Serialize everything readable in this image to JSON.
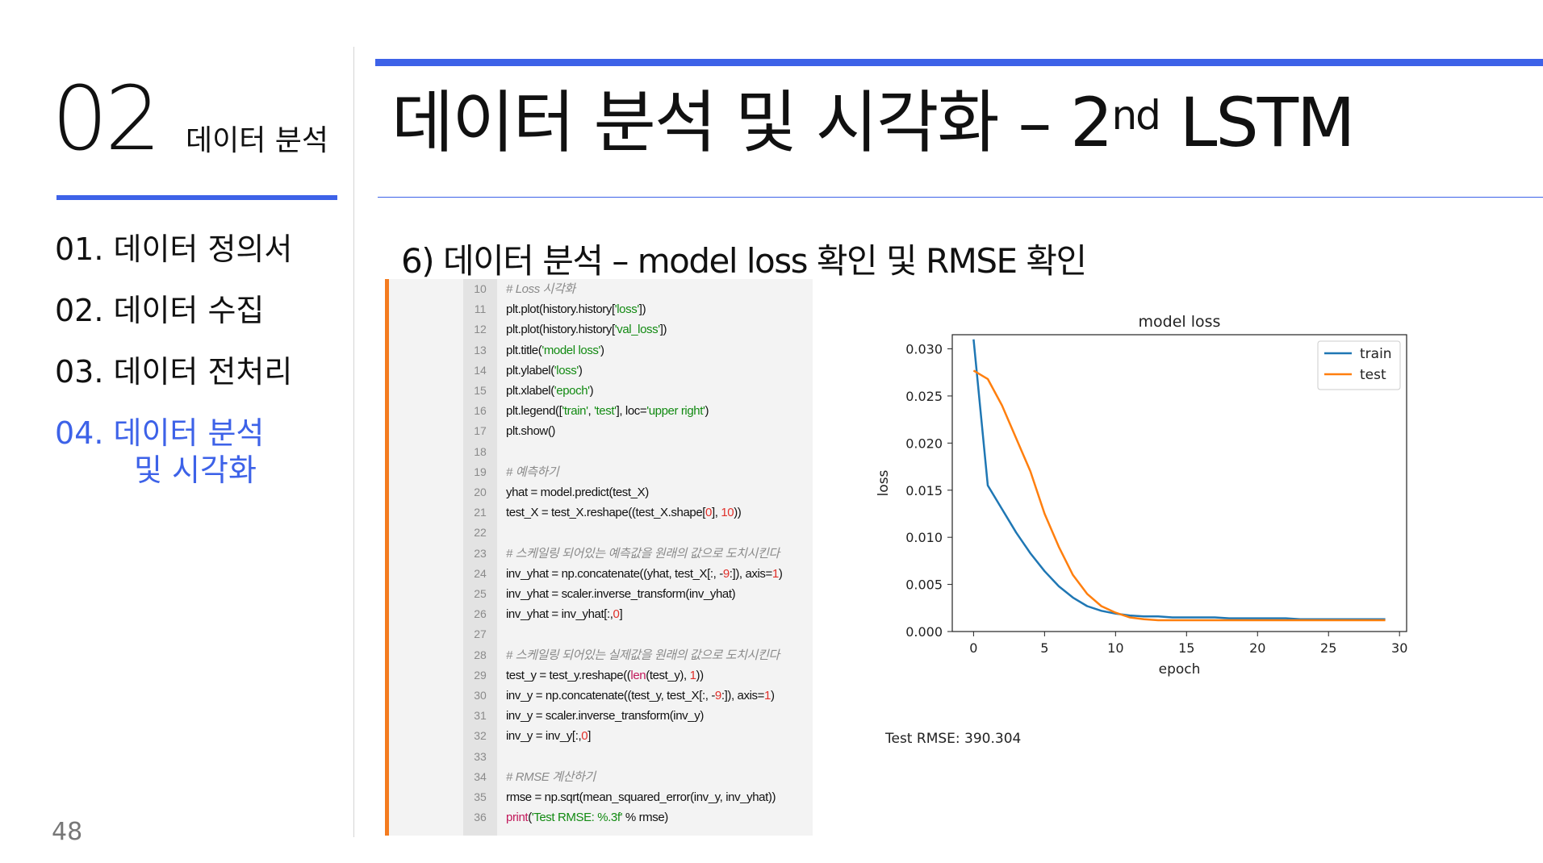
{
  "sidebar": {
    "section_number": "02",
    "section_title": "데이터 분석",
    "toc": [
      {
        "label": "01. 데이터 정의서"
      },
      {
        "label": "02. 데이터 수집"
      },
      {
        "label": "03. 데이터 전처리"
      },
      {
        "label": "04. 데이터 분석",
        "label_line2": "및 시각화",
        "active": true
      }
    ],
    "page_number": "48"
  },
  "header": {
    "title": "데이터 분석 및 시각화 – 2",
    "title_superscript": "nd",
    "title_suffix": " LSTM",
    "subtitle": "6) 데이터 분석 – model loss 확인 및 RMSE 확인"
  },
  "code": {
    "lines": [
      {
        "n": "10",
        "html": "<span class=\"cm\"># Loss 시각화</span>"
      },
      {
        "n": "11",
        "html": "plt.plot(history.history[<span class=\"st\">'loss'</span>])"
      },
      {
        "n": "12",
        "html": "plt.plot(history.history[<span class=\"st\">'val_loss'</span>])"
      },
      {
        "n": "13",
        "html": "plt.title(<span class=\"st\">'model loss'</span>)"
      },
      {
        "n": "14",
        "html": "plt.ylabel(<span class=\"st\">'loss'</span>)"
      },
      {
        "n": "15",
        "html": "plt.xlabel(<span class=\"st\">'epoch'</span>)"
      },
      {
        "n": "16",
        "html": "plt.legend([<span class=\"st\">'train'</span>, <span class=\"st\">'test'</span>], loc=<span class=\"st\">'upper right'</span>)"
      },
      {
        "n": "17",
        "html": "plt.show()"
      },
      {
        "n": "18",
        "html": ""
      },
      {
        "n": "19",
        "html": "<span class=\"cm\"># 예측하기</span>"
      },
      {
        "n": "20",
        "html": "yhat = model.predict(test_X)"
      },
      {
        "n": "21",
        "html": "test_X = test_X.reshape((test_X.shape[<span class=\"nm\">0</span>], <span class=\"nm\">10</span>))"
      },
      {
        "n": "22",
        "html": ""
      },
      {
        "n": "23",
        "html": "<span class=\"cm\"># 스케일링 되어있는 예측값을 원래의 값으로 도치시킨다</span>"
      },
      {
        "n": "24",
        "html": "inv_yhat = np.concatenate((yhat, test_X[:, -<span class=\"nm\">9</span>:]), axis=<span class=\"nm\">1</span>)"
      },
      {
        "n": "25",
        "html": "inv_yhat = scaler.inverse_transform(inv_yhat)"
      },
      {
        "n": "26",
        "html": "inv_yhat = inv_yhat[:,<span class=\"nm\">0</span>]"
      },
      {
        "n": "27",
        "html": ""
      },
      {
        "n": "28",
        "html": "<span class=\"cm\"># 스케일링 되어있는 실제값을 원래의 값으로 도치시킨다</span>"
      },
      {
        "n": "29",
        "html": "test_y = test_y.reshape((<span class=\"kw\">len</span>(test_y), <span class=\"nm\">1</span>))"
      },
      {
        "n": "30",
        "html": "inv_y = np.concatenate((test_y, test_X[:, -<span class=\"nm\">9</span>:]), axis=<span class=\"nm\">1</span>)"
      },
      {
        "n": "31",
        "html": "inv_y = scaler.inverse_transform(inv_y)"
      },
      {
        "n": "32",
        "html": "inv_y = inv_y[:,<span class=\"nm\">0</span>]"
      },
      {
        "n": "33",
        "html": ""
      },
      {
        "n": "34",
        "html": "<span class=\"cm\"># RMSE 계산하기</span>"
      },
      {
        "n": "35",
        "html": "rmse = np.sqrt(mean_squared_error(inv_y, inv_yhat))"
      },
      {
        "n": "36",
        "html": "<span class=\"kw\">print</span>(<span class=\"st\">'Test RMSE: %.3f'</span> % rmse)"
      }
    ]
  },
  "rmse_text": "Test RMSE: 390.304",
  "chart_data": {
    "type": "line",
    "title": "model loss",
    "xlabel": "epoch",
    "ylabel": "loss",
    "xlim": [
      -1.5,
      30.5
    ],
    "ylim": [
      0,
      0.0315
    ],
    "xticks": [
      "0",
      "5",
      "10",
      "15",
      "20",
      "25",
      "30"
    ],
    "yticks": [
      "0.000",
      "0.005",
      "0.010",
      "0.015",
      "0.020",
      "0.025",
      "0.030"
    ],
    "legend_position": "top-right",
    "grid": false,
    "x": [
      0,
      1,
      2,
      3,
      4,
      5,
      6,
      7,
      8,
      9,
      10,
      11,
      12,
      13,
      14,
      15,
      16,
      17,
      18,
      19,
      20,
      21,
      22,
      23,
      24,
      25,
      26,
      27,
      28,
      29
    ],
    "series": [
      {
        "name": "train",
        "color": "#1f77b4",
        "values": [
          0.031,
          0.0155,
          0.013,
          0.0105,
          0.0083,
          0.0064,
          0.0048,
          0.0036,
          0.0027,
          0.0022,
          0.0019,
          0.0017,
          0.0016,
          0.0016,
          0.0015,
          0.0015,
          0.0015,
          0.0015,
          0.0014,
          0.0014,
          0.0014,
          0.0014,
          0.0014,
          0.0013,
          0.0013,
          0.0013,
          0.0013,
          0.0013,
          0.0013,
          0.0013
        ]
      },
      {
        "name": "test",
        "color": "#ff7f0e",
        "values": [
          0.0277,
          0.0268,
          0.024,
          0.0205,
          0.017,
          0.0125,
          0.009,
          0.006,
          0.004,
          0.0027,
          0.002,
          0.0015,
          0.0013,
          0.0012,
          0.0012,
          0.0012,
          0.0012,
          0.0012,
          0.0012,
          0.0012,
          0.0012,
          0.0012,
          0.0012,
          0.0012,
          0.0012,
          0.0012,
          0.0012,
          0.0012,
          0.0012,
          0.0012
        ]
      }
    ]
  }
}
